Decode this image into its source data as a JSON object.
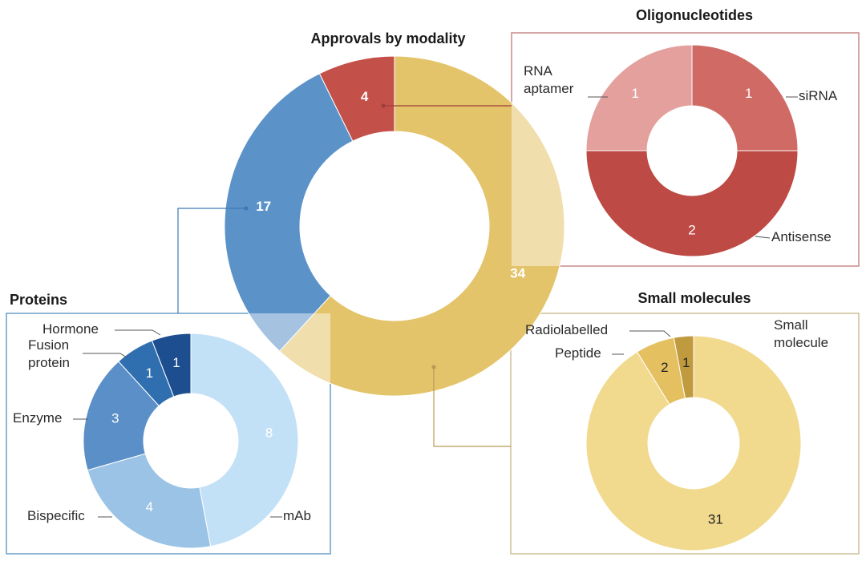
{
  "chart_data": [
    {
      "type": "pie",
      "variant": "donut",
      "title": "Approvals by modality",
      "categories": [
        "Small molecules",
        "Proteins",
        "Oligonucleotides"
      ],
      "values": [
        34,
        17,
        4
      ],
      "colors": [
        "#e4c46a",
        "#5b93c9",
        "#c4504a"
      ]
    },
    {
      "type": "pie",
      "variant": "donut",
      "title": "Oligonucleotides",
      "categories": [
        "siRNA",
        "Antisense",
        "RNA aptamer"
      ],
      "labels": [
        [
          "siRNA"
        ],
        [
          "Antisense"
        ],
        [
          "RNA",
          "aptamer"
        ]
      ],
      "values": [
        1,
        2,
        1
      ],
      "colors": [
        "#cf6a64",
        "#bd4a44",
        "#e3a09d"
      ]
    },
    {
      "type": "pie",
      "variant": "donut",
      "title": "Proteins",
      "categories": [
        "mAb",
        "Bispecific",
        "Enzyme",
        "Fusion protein",
        "Hormone"
      ],
      "labels": [
        [
          "mAb"
        ],
        [
          "Bispecific"
        ],
        [
          "Enzyme"
        ],
        [
          "Fusion",
          "protein"
        ],
        [
          "Hormone"
        ]
      ],
      "values": [
        8,
        4,
        3,
        1,
        1
      ],
      "colors": [
        "#c3e1f6",
        "#9bc3e6",
        "#5b8fc8",
        "#2f6fb0",
        "#1d4e8f"
      ]
    },
    {
      "type": "pie",
      "variant": "donut",
      "title": "Small molecules",
      "categories": [
        "Small molecule",
        "Peptide",
        "Radiolabelled"
      ],
      "labels": [
        [
          "Small",
          "molecule"
        ],
        [
          "Peptide"
        ],
        [
          "Radiolabelled"
        ]
      ],
      "values": [
        31,
        2,
        1
      ],
      "colors": [
        "#f1d98e",
        "#e5c060",
        "#c09a3e"
      ]
    }
  ],
  "box_colors": {
    "Oligonucleotides": "#c98a8a",
    "Proteins": "#6a9fc9",
    "Small molecules": "#cdbf97"
  }
}
